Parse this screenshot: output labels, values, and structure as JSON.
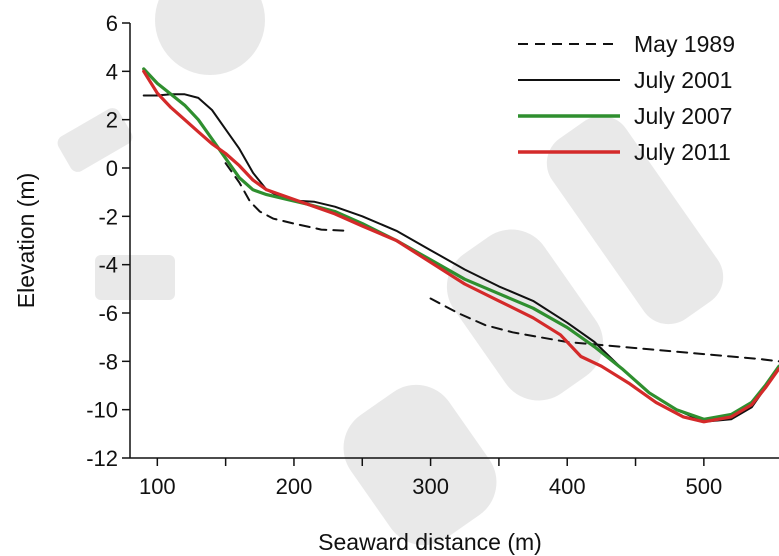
{
  "chart_data": {
    "type": "line",
    "xlabel": "Seaward distance (m)",
    "ylabel": "Elevation (m)",
    "xlim": [
      80,
      555
    ],
    "ylim": [
      -12,
      6
    ],
    "xticks": [
      100,
      200,
      300,
      400,
      500
    ],
    "xminor": [
      150,
      250,
      350,
      450
    ],
    "yticks": [
      -12,
      -10,
      -8,
      -6,
      -4,
      -2,
      0,
      2,
      4,
      6
    ],
    "legend_position": "top-right",
    "series": [
      {
        "name": "May 1989",
        "color": "#111111",
        "dash": "dashed",
        "segments": [
          [
            [
              150,
              0.2
            ],
            [
              160,
              -0.6
            ],
            [
              168,
              -1.4
            ],
            [
              175,
              -1.8
            ],
            [
              185,
              -2.1
            ],
            [
              200,
              -2.3
            ],
            [
              220,
              -2.55
            ],
            [
              240,
              -2.6
            ]
          ],
          [
            [
              300,
              -5.4
            ],
            [
              320,
              -6.0
            ],
            [
              340,
              -6.5
            ],
            [
              360,
              -6.8
            ],
            [
              380,
              -7.0
            ],
            [
              400,
              -7.2
            ],
            [
              420,
              -7.3
            ],
            [
              440,
              -7.4
            ],
            [
              460,
              -7.5
            ],
            [
              480,
              -7.6
            ],
            [
              500,
              -7.7
            ],
            [
              520,
              -7.8
            ],
            [
              540,
              -7.9
            ],
            [
              555,
              -8.0
            ]
          ]
        ]
      },
      {
        "name": "July 2001",
        "color": "#111111",
        "dash": "solid",
        "segments": [
          [
            [
              90,
              3.0
            ],
            [
              100,
              3.0
            ],
            [
              110,
              3.05
            ],
            [
              120,
              3.05
            ],
            [
              130,
              2.9
            ],
            [
              140,
              2.4
            ],
            [
              150,
              1.6
            ],
            [
              160,
              0.8
            ],
            [
              170,
              -0.2
            ],
            [
              180,
              -0.9
            ],
            [
              190,
              -1.2
            ],
            [
              200,
              -1.35
            ],
            [
              215,
              -1.4
            ],
            [
              230,
              -1.6
            ],
            [
              250,
              -2.0
            ],
            [
              275,
              -2.6
            ],
            [
              300,
              -3.4
            ],
            [
              325,
              -4.2
            ],
            [
              350,
              -4.9
            ],
            [
              375,
              -5.5
            ],
            [
              400,
              -6.4
            ],
            [
              420,
              -7.2
            ],
            [
              440,
              -8.3
            ],
            [
              460,
              -9.3
            ],
            [
              480,
              -10.0
            ],
            [
              500,
              -10.5
            ],
            [
              520,
              -10.4
            ],
            [
              535,
              -9.9
            ],
            [
              545,
              -9.1
            ],
            [
              555,
              -8.3
            ]
          ]
        ]
      },
      {
        "name": "July 2007",
        "color": "#2f8f2f",
        "dash": "solid",
        "segments": [
          [
            [
              90,
              4.1
            ],
            [
              100,
              3.5
            ],
            [
              110,
              3.05
            ],
            [
              120,
              2.6
            ],
            [
              130,
              2.0
            ],
            [
              140,
              1.2
            ],
            [
              150,
              0.4
            ],
            [
              160,
              -0.4
            ],
            [
              170,
              -0.9
            ],
            [
              180,
              -1.1
            ],
            [
              195,
              -1.3
            ],
            [
              210,
              -1.5
            ],
            [
              230,
              -1.8
            ],
            [
              250,
              -2.3
            ],
            [
              275,
              -3.0
            ],
            [
              300,
              -3.8
            ],
            [
              325,
              -4.6
            ],
            [
              350,
              -5.2
            ],
            [
              375,
              -5.8
            ],
            [
              400,
              -6.6
            ],
            [
              420,
              -7.4
            ],
            [
              440,
              -8.3
            ],
            [
              460,
              -9.3
            ],
            [
              480,
              -10.0
            ],
            [
              500,
              -10.4
            ],
            [
              520,
              -10.2
            ],
            [
              535,
              -9.7
            ],
            [
              545,
              -9.0
            ],
            [
              555,
              -8.2
            ]
          ]
        ]
      },
      {
        "name": "July 2011",
        "color": "#d42a2a",
        "dash": "solid",
        "segments": [
          [
            [
              90,
              4.0
            ],
            [
              100,
              3.1
            ],
            [
              110,
              2.5
            ],
            [
              120,
              2.0
            ],
            [
              130,
              1.5
            ],
            [
              140,
              1.0
            ],
            [
              150,
              0.6
            ],
            [
              160,
              0.1
            ],
            [
              170,
              -0.5
            ],
            [
              180,
              -0.9
            ],
            [
              195,
              -1.2
            ],
            [
              210,
              -1.5
            ],
            [
              230,
              -1.9
            ],
            [
              250,
              -2.4
            ],
            [
              275,
              -3.0
            ],
            [
              300,
              -3.9
            ],
            [
              325,
              -4.8
            ],
            [
              350,
              -5.5
            ],
            [
              375,
              -6.2
            ],
            [
              395,
              -6.9
            ],
            [
              410,
              -7.8
            ],
            [
              425,
              -8.2
            ],
            [
              445,
              -8.9
            ],
            [
              465,
              -9.7
            ],
            [
              485,
              -10.3
            ],
            [
              500,
              -10.5
            ],
            [
              520,
              -10.3
            ],
            [
              535,
              -9.8
            ],
            [
              545,
              -9.1
            ],
            [
              555,
              -8.3
            ]
          ]
        ]
      }
    ]
  }
}
